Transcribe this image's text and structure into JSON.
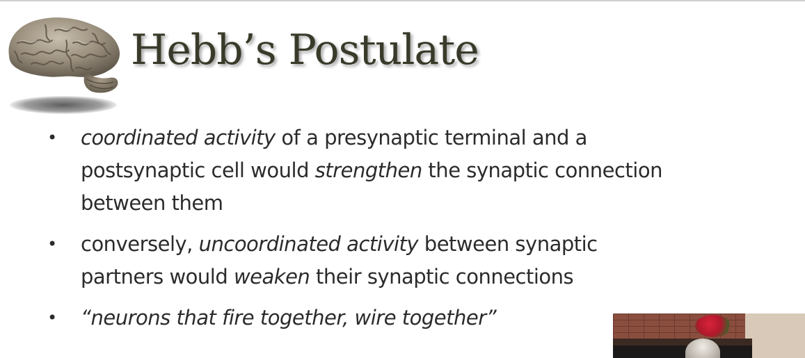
{
  "slide": {
    "title": "Hebb’s Postulate",
    "bullet_symbol": "•",
    "bullets": [
      {
        "lines": [
          [
            {
              "text": "coordinated activity",
              "italic": true
            },
            {
              "text": " of a presynaptic terminal and a",
              "italic": false
            }
          ],
          [
            {
              "text": "postsynaptic cell would ",
              "italic": false
            },
            {
              "text": "strengthen",
              "italic": true
            },
            {
              "text": " the synaptic connection",
              "italic": false
            }
          ],
          [
            {
              "text": "between them",
              "italic": false
            }
          ]
        ]
      },
      {
        "lines": [
          [
            {
              "text": "conversely, ",
              "italic": false
            },
            {
              "text": "uncoordinated activity",
              "italic": true
            },
            {
              "text": " between synaptic",
              "italic": false
            }
          ],
          [
            {
              "text": "partners would ",
              "italic": false
            },
            {
              "text": "weaken",
              "italic": true
            },
            {
              "text": " their synaptic connections",
              "italic": false
            }
          ]
        ]
      },
      {
        "lines": [
          [
            {
              "text": "“neurons that fire together, wire together”",
              "italic": true
            }
          ]
        ]
      }
    ]
  },
  "icons": {
    "logo": "brain-icon"
  },
  "colors": {
    "title_text": "#3a3a2a",
    "body_text": "#2b2b2b",
    "background": "#ffffff"
  }
}
